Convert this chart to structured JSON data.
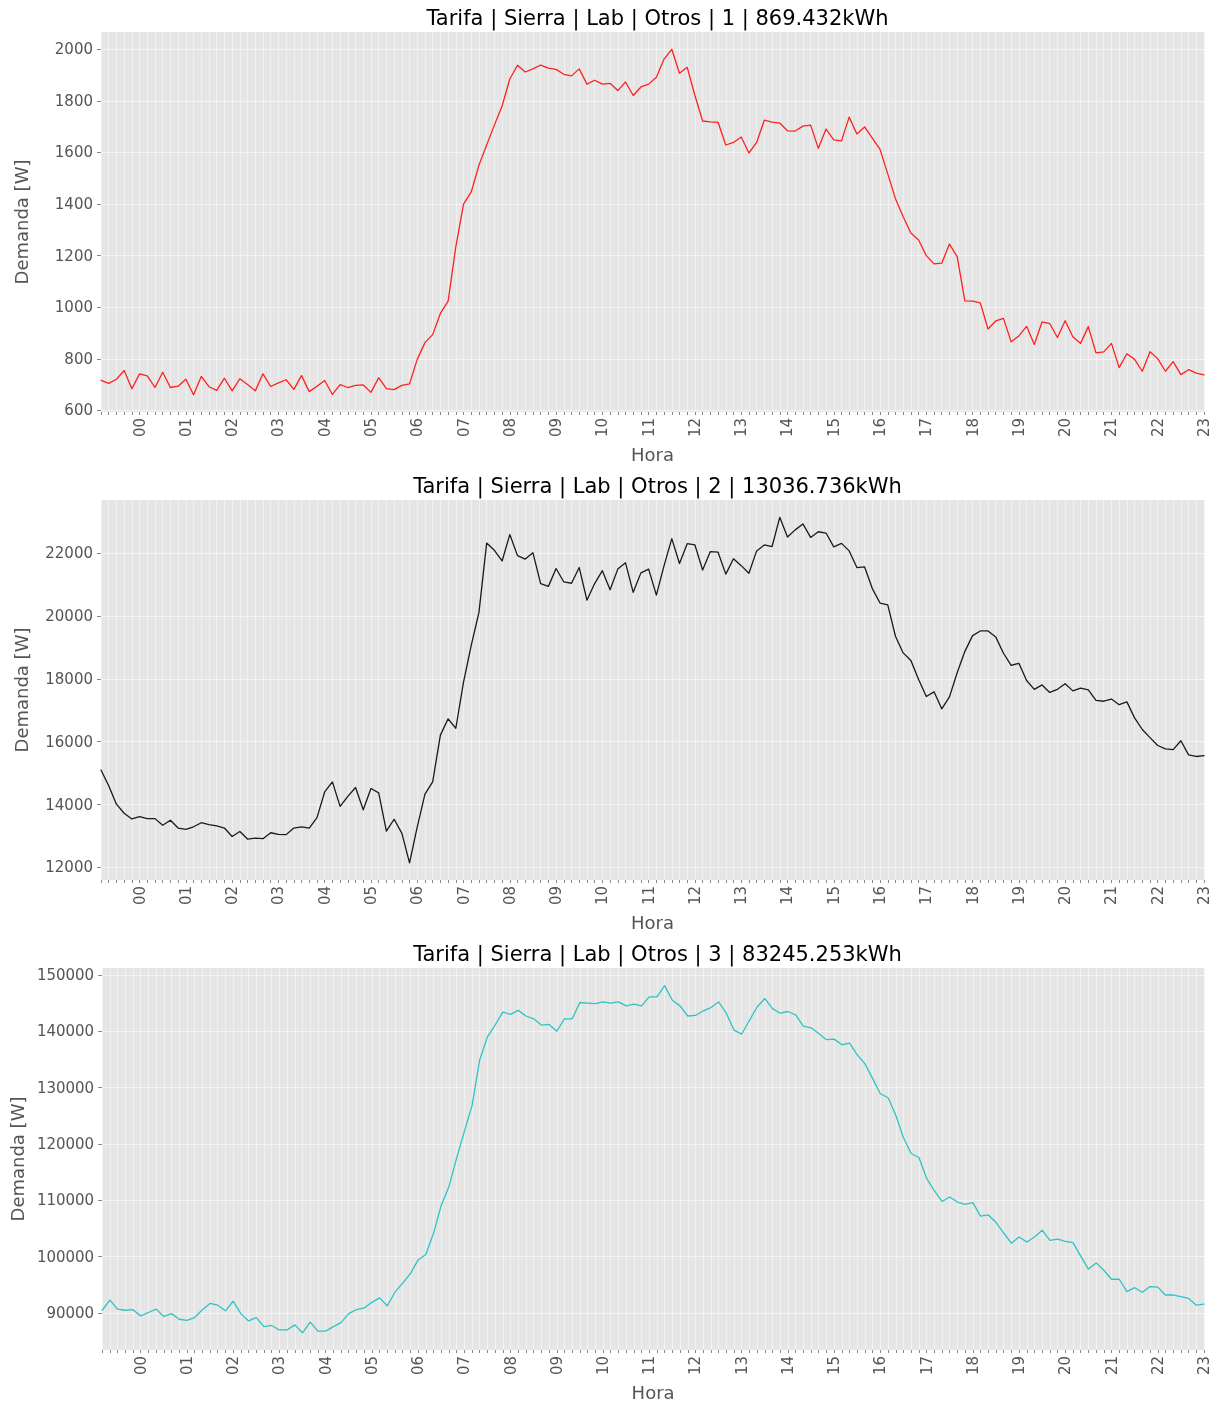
{
  "chart_data": [
    {
      "type": "line",
      "title": "Tarifa | Sierra | Lab | Otros | 1 | 869.432kWh",
      "xlabel": "Hora",
      "ylabel": "Demanda [W]",
      "categories": [
        null,
        null,
        null,
        null,
        null,
        "00",
        null,
        null,
        null,
        null,
        null,
        "01",
        null,
        null,
        null,
        null,
        null,
        "02",
        null,
        null,
        null,
        null,
        null,
        "03",
        null,
        null,
        null,
        null,
        null,
        "04",
        null,
        null,
        null,
        null,
        null,
        "05",
        null,
        null,
        null,
        null,
        null,
        "06",
        null,
        null,
        null,
        null,
        null,
        "07",
        null,
        null,
        null,
        null,
        null,
        "08",
        null,
        null,
        null,
        null,
        null,
        "09",
        null,
        null,
        null,
        null,
        null,
        "10",
        null,
        null,
        null,
        null,
        null,
        "11",
        null,
        null,
        null,
        null,
        null,
        "12",
        null,
        null,
        null,
        null,
        null,
        "13",
        null,
        null,
        null,
        null,
        null,
        "14",
        null,
        null,
        null,
        null,
        null,
        "15",
        null,
        null,
        null,
        null,
        null,
        "16",
        null,
        null,
        null,
        null,
        null,
        "17",
        null,
        null,
        null,
        null,
        null,
        "18",
        null,
        null,
        null,
        null,
        null,
        "19",
        null,
        null,
        null,
        null,
        null,
        "20",
        null,
        null,
        null,
        null,
        null,
        "21",
        null,
        null,
        null,
        null,
        null,
        "22",
        null,
        null,
        null,
        null,
        null,
        "23"
      ],
      "series": [
        {
          "color": "#ff2020",
          "values": [
            717,
            705,
            721,
            755,
            684,
            742,
            734,
            689,
            748,
            689,
            694,
            721,
            661,
            732,
            692,
            678,
            725,
            676,
            723,
            701,
            676,
            742,
            693,
            707,
            719,
            682,
            735,
            673,
            694,
            716,
            662,
            700,
            689,
            697,
            699,
            670,
            727,
            685,
            681,
            697,
            703,
            798,
            863,
            894,
            976,
            1024,
            1234,
            1400,
            1447,
            1551,
            1629,
            1706,
            1780,
            1885,
            1938,
            1912,
            1924,
            1939,
            1927,
            1922,
            1903,
            1897,
            1924,
            1865,
            1880,
            1865,
            1868,
            1840,
            1873,
            1821,
            1854,
            1865,
            1892,
            1962,
            2000,
            1907,
            1930,
            1821,
            1722,
            1719,
            1717,
            1629,
            1639,
            1660,
            1598,
            1639,
            1725,
            1718,
            1714,
            1684,
            1683,
            1702,
            1706,
            1616,
            1691,
            1649,
            1645,
            1737,
            1672,
            1699,
            1656,
            1612,
            1517,
            1421,
            1351,
            1288,
            1261,
            1200,
            1168,
            1171,
            1245,
            1196,
            1025,
            1024,
            1017,
            916,
            947,
            957,
            866,
            889,
            926,
            856,
            943,
            937,
            883,
            948,
            886,
            860,
            925,
            823,
            827,
            860,
            766,
            820,
            798,
            752,
            828,
            801,
            752,
            789,
            739,
            758,
            745,
            738
          ]
        }
      ],
      "ylim": [
        594,
        2067
      ],
      "yticks": [
        600,
        800,
        1000,
        1200,
        1400,
        1600,
        1800,
        2000
      ],
      "grid": true,
      "marker": "none"
    },
    {
      "type": "line",
      "title": "Tarifa | Sierra | Lab | Otros | 2 | 13036.736kWh",
      "xlabel": "Hora",
      "ylabel": "Demanda [W]",
      "categories": [
        null,
        null,
        null,
        null,
        null,
        "00",
        null,
        null,
        null,
        null,
        null,
        "01",
        null,
        null,
        null,
        null,
        null,
        "02",
        null,
        null,
        null,
        null,
        null,
        "03",
        null,
        null,
        null,
        null,
        null,
        "04",
        null,
        null,
        null,
        null,
        null,
        "05",
        null,
        null,
        null,
        null,
        null,
        "06",
        null,
        null,
        null,
        null,
        null,
        "07",
        null,
        null,
        null,
        null,
        null,
        "08",
        null,
        null,
        null,
        null,
        null,
        "09",
        null,
        null,
        null,
        null,
        null,
        "10",
        null,
        null,
        null,
        null,
        null,
        "11",
        null,
        null,
        null,
        null,
        null,
        "12",
        null,
        null,
        null,
        null,
        null,
        "13",
        null,
        null,
        null,
        null,
        null,
        "14",
        null,
        null,
        null,
        null,
        null,
        "15",
        null,
        null,
        null,
        null,
        null,
        "16",
        null,
        null,
        null,
        null,
        null,
        "17",
        null,
        null,
        null,
        null,
        null,
        "18",
        null,
        null,
        null,
        null,
        null,
        "19",
        null,
        null,
        null,
        null,
        null,
        "20",
        null,
        null,
        null,
        null,
        null,
        "21",
        null,
        null,
        null,
        null,
        null,
        "22",
        null,
        null,
        null,
        null,
        null,
        "23"
      ],
      "series": [
        {
          "color": "#1a1a1a",
          "values": [
            15100,
            14600,
            14010,
            13720,
            13540,
            13610,
            13550,
            13550,
            13340,
            13500,
            13250,
            13210,
            13290,
            13420,
            13360,
            13320,
            13250,
            12980,
            13140,
            12900,
            12930,
            12910,
            13100,
            13050,
            13040,
            13250,
            13290,
            13250,
            13580,
            14400,
            14720,
            13940,
            14260,
            14540,
            13830,
            14510,
            14370,
            13150,
            13530,
            13090,
            12140,
            13290,
            14330,
            14720,
            16210,
            16730,
            16430,
            17900,
            19070,
            20120,
            22330,
            22100,
            21760,
            22600,
            21930,
            21820,
            22020,
            21040,
            20950,
            21520,
            21090,
            21050,
            21550,
            20510,
            21040,
            21450,
            20840,
            21500,
            21700,
            20760,
            21380,
            21500,
            20670,
            21610,
            22470,
            21680,
            22310,
            22270,
            21470,
            22060,
            22040,
            21340,
            21830,
            21610,
            21370,
            22080,
            22270,
            22220,
            23150,
            22520,
            22750,
            22940,
            22510,
            22690,
            22650,
            22210,
            22320,
            22080,
            21550,
            21570,
            20880,
            20420,
            20360,
            19360,
            18830,
            18590,
            17980,
            17440,
            17590,
            17050,
            17430,
            18200,
            18880,
            19380,
            19530,
            19530,
            19340,
            18820,
            18430,
            18500,
            17950,
            17670,
            17810,
            17570,
            17670,
            17850,
            17620,
            17710,
            17650,
            17320,
            17290,
            17360,
            17180,
            17270,
            16760,
            16390,
            16130,
            15880,
            15770,
            15750,
            16030,
            15580,
            15530,
            15560
          ]
        }
      ],
      "ylim": [
        11594,
        23702
      ],
      "yticks": [
        12000,
        14000,
        16000,
        18000,
        20000,
        22000
      ],
      "grid": true,
      "marker": "none"
    },
    {
      "type": "line",
      "title": "Tarifa | Sierra | Lab | Otros | 3 | 83245.253kWh",
      "xlabel": "Hora",
      "ylabel": "Demanda [W]",
      "categories": [
        null,
        null,
        null,
        null,
        null,
        "00",
        null,
        null,
        null,
        null,
        null,
        "01",
        null,
        null,
        null,
        null,
        null,
        "02",
        null,
        null,
        null,
        null,
        null,
        "03",
        null,
        null,
        null,
        null,
        null,
        "04",
        null,
        null,
        null,
        null,
        null,
        "05",
        null,
        null,
        null,
        null,
        null,
        "06",
        null,
        null,
        null,
        null,
        null,
        "07",
        null,
        null,
        null,
        null,
        null,
        "08",
        null,
        null,
        null,
        null,
        null,
        "09",
        null,
        null,
        null,
        null,
        null,
        "10",
        null,
        null,
        null,
        null,
        null,
        "11",
        null,
        null,
        null,
        null,
        null,
        "12",
        null,
        null,
        null,
        null,
        null,
        "13",
        null,
        null,
        null,
        null,
        null,
        "14",
        null,
        null,
        null,
        null,
        null,
        "15",
        null,
        null,
        null,
        null,
        null,
        "16",
        null,
        null,
        null,
        null,
        null,
        "17",
        null,
        null,
        null,
        null,
        null,
        "18",
        null,
        null,
        null,
        null,
        null,
        "19",
        null,
        null,
        null,
        null,
        null,
        "20",
        null,
        null,
        null,
        null,
        null,
        "21",
        null,
        null,
        null,
        null,
        null,
        "22",
        null,
        null,
        null,
        null,
        null,
        "23"
      ],
      "series": [
        {
          "color": "#2ec4c4",
          "values": [
            90500,
            92300,
            90700,
            90500,
            90600,
            89500,
            90100,
            90700,
            89400,
            89900,
            88900,
            88700,
            89200,
            90600,
            91700,
            91400,
            90400,
            92100,
            89900,
            88600,
            89200,
            87600,
            87800,
            87000,
            87000,
            87900,
            86500,
            88400,
            86800,
            86800,
            87600,
            88300,
            89900,
            90600,
            90900,
            91900,
            92700,
            91300,
            93700,
            95300,
            97000,
            99400,
            100400,
            104100,
            109100,
            112400,
            117500,
            122200,
            126800,
            134900,
            139000,
            141100,
            143400,
            143000,
            143700,
            142700,
            142200,
            141100,
            141200,
            140000,
            142200,
            142200,
            145100,
            145000,
            144900,
            145200,
            145000,
            145200,
            144500,
            144800,
            144500,
            146100,
            146100,
            148100,
            145500,
            144500,
            142700,
            142800,
            143600,
            144200,
            145200,
            143200,
            140200,
            139500,
            141900,
            144300,
            145800,
            144000,
            143200,
            143500,
            142900,
            140900,
            140600,
            139600,
            138500,
            138600,
            137600,
            137900,
            135800,
            134200,
            131600,
            128900,
            128200,
            125100,
            121100,
            118300,
            117600,
            113900,
            111700,
            109800,
            110600,
            109700,
            109300,
            109600,
            107200,
            107400,
            106100,
            104200,
            102400,
            103500,
            102600,
            103500,
            104700,
            102900,
            103100,
            102700,
            102500,
            100100,
            97800,
            98900,
            97600,
            96000,
            96000,
            93800,
            94500,
            93700,
            94700,
            94600,
            93200,
            93200,
            92900,
            92600,
            91400,
            91600
          ]
        }
      ],
      "ylim": [
        83443,
        151218
      ],
      "yticks": [
        90000,
        100000,
        110000,
        120000,
        130000,
        140000,
        150000
      ],
      "grid": true,
      "marker": "none"
    }
  ]
}
